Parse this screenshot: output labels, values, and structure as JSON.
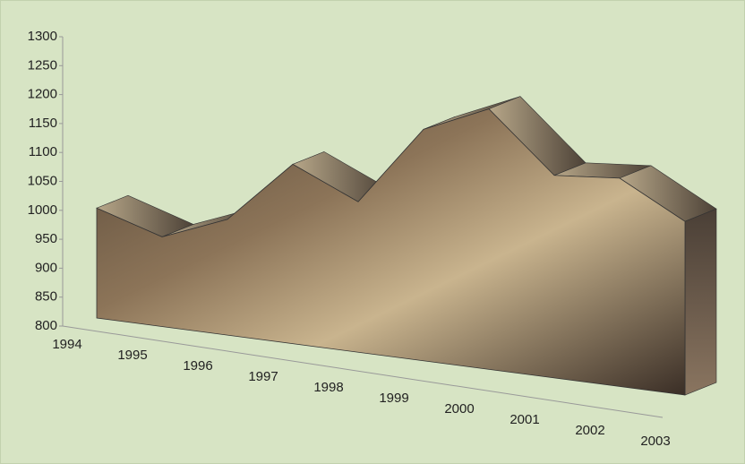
{
  "chart_data": {
    "type": "area3d",
    "categories": [
      "1994",
      "1995",
      "1996",
      "1997",
      "1998",
      "1999",
      "2000",
      "2001",
      "2002",
      "2003"
    ],
    "values": [
      990,
      955,
      1000,
      1110,
      1060,
      1200,
      1250,
      1150,
      1160,
      1100
    ],
    "color": "#8a6a48",
    "ylim": [
      800,
      1300
    ],
    "yticks": [
      800,
      850,
      900,
      950,
      1000,
      1050,
      1100,
      1150,
      1200,
      1250,
      1300
    ],
    "grid": false
  }
}
